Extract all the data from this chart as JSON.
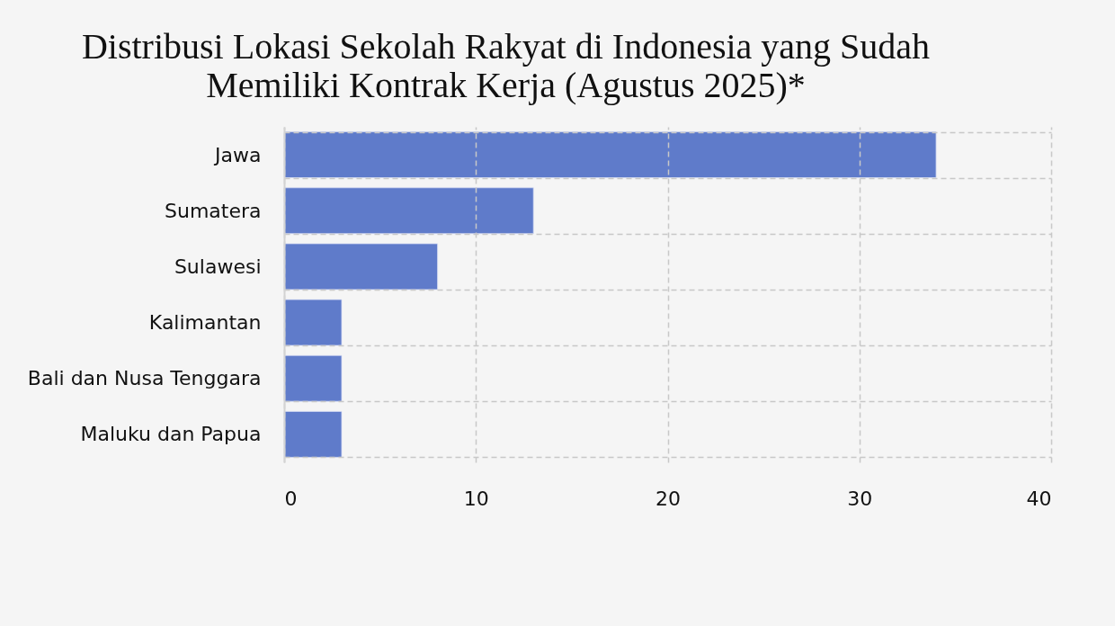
{
  "chart_data": {
    "type": "bar",
    "title": "Distribusi Lokasi Sekolah Rakyat di Indonesia yang Sudah Memiliki Kontrak Kerja (Agustus 2025)*",
    "categories": [
      "Jawa",
      "Sumatera",
      "Sulawesi",
      "Kalimantan",
      "Bali dan Nusa Tenggara",
      "Maluku dan Papua"
    ],
    "values": [
      34,
      13,
      8,
      3,
      3,
      3
    ],
    "color": "#5f7bca",
    "orientation": "horizontal",
    "xlim": [
      0,
      40
    ],
    "xticks": [
      0,
      10,
      20,
      30,
      40
    ],
    "grid": true
  }
}
